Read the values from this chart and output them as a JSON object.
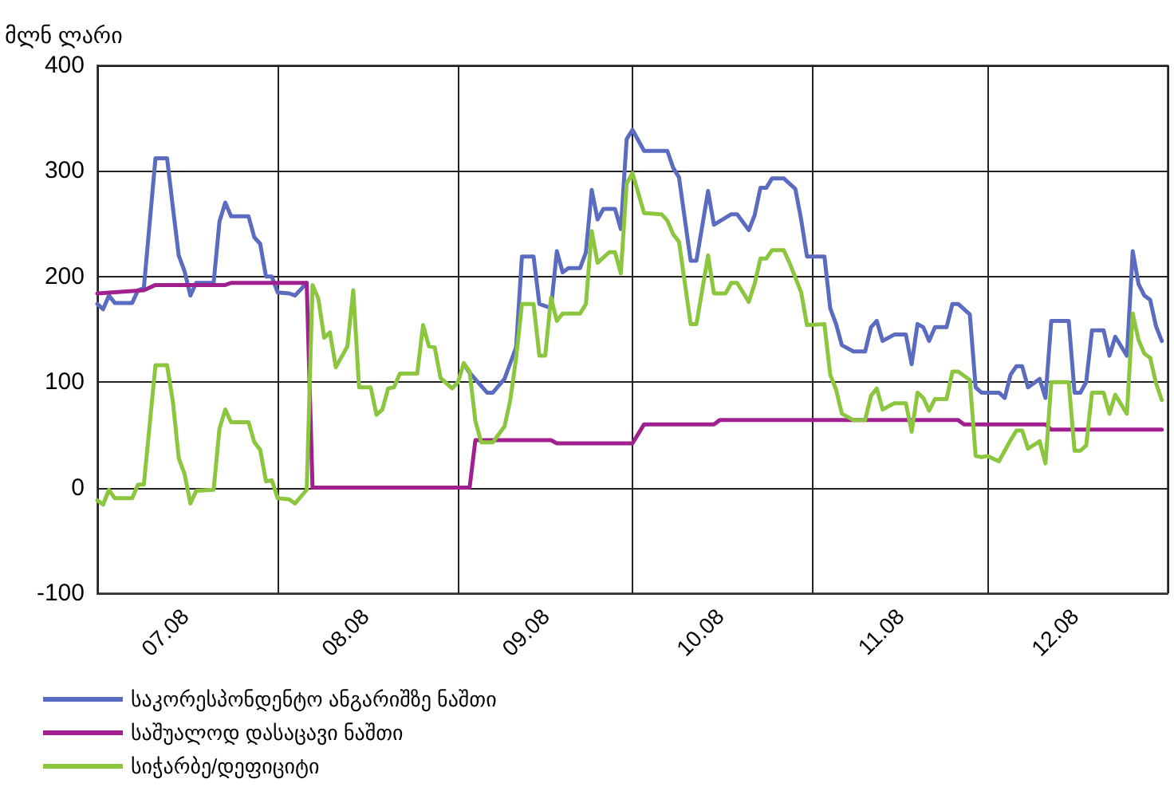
{
  "chart_data": {
    "type": "line",
    "ylabel": "მლნ ლარი",
    "xlim": [
      "2008-07-01",
      "2009-01-01"
    ],
    "xticks": [
      {
        "value": "2008-07-01",
        "label": null
      },
      {
        "value": "2008-07-16",
        "label": "07.08"
      },
      {
        "value": "2008-08-01",
        "label": null
      },
      {
        "value": "2008-08-16",
        "label": "08.08"
      },
      {
        "value": "2008-09-01",
        "label": null
      },
      {
        "value": "2008-09-16",
        "label": "09.08"
      },
      {
        "value": "2008-10-01",
        "label": null
      },
      {
        "value": "2008-10-16",
        "label": "10.08"
      },
      {
        "value": "2008-11-01",
        "label": null
      },
      {
        "value": "2008-11-16",
        "label": "11.08"
      },
      {
        "value": "2008-12-01",
        "label": null
      },
      {
        "value": "2008-12-16",
        "label": "12.08"
      },
      {
        "value": "2009-01-01",
        "label": null
      }
    ],
    "ylim": [
      -100,
      400
    ],
    "yticks": [
      -100,
      0,
      100,
      200,
      300,
      400
    ],
    "grid": true,
    "legend": "bottom",
    "marker": "none",
    "line_style": "solid",
    "series": [
      {
        "name": "საკორესპონდენტო ანგარიშზე ნაშთი",
        "color": "#5b6bbf",
        "x": [
          "2008-07-01",
          "2008-07-02",
          "2008-07-03",
          "2008-07-04",
          "2008-07-07",
          "2008-07-08",
          "2008-07-09",
          "2008-07-11",
          "2008-07-13",
          "2008-07-14",
          "2008-07-15",
          "2008-07-16",
          "2008-07-17",
          "2008-07-18",
          "2008-07-21",
          "2008-07-22",
          "2008-07-23",
          "2008-07-24",
          "2008-07-27",
          "2008-07-28",
          "2008-07-29",
          "2008-07-30",
          "2008-07-31",
          "2008-08-01",
          "2008-08-03",
          "2008-08-04",
          "2008-08-06",
          "2008-08-20",
          "2008-09-02",
          "2008-09-03",
          "2008-09-06",
          "2008-09-07",
          "2008-09-09",
          "2008-09-11",
          "2008-09-12",
          "2008-09-14",
          "2008-09-15",
          "2008-09-17",
          "2008-09-18",
          "2008-09-19",
          "2008-09-20",
          "2008-09-22",
          "2008-09-23",
          "2008-09-24",
          "2008-09-25",
          "2008-09-26",
          "2008-09-28",
          "2008-09-29",
          "2008-09-30",
          "2008-10-01",
          "2008-10-03",
          "2008-10-07",
          "2008-10-08",
          "2008-10-09",
          "2008-10-11",
          "2008-10-12",
          "2008-10-14",
          "2008-10-15",
          "2008-10-18",
          "2008-10-19",
          "2008-10-21",
          "2008-10-22",
          "2008-10-23",
          "2008-10-24",
          "2008-10-25",
          "2008-10-27",
          "2008-10-29",
          "2008-10-30",
          "2008-10-31",
          "2008-11-03",
          "2008-11-04",
          "2008-11-05",
          "2008-11-06",
          "2008-11-08",
          "2008-11-10",
          "2008-11-11",
          "2008-11-12",
          "2008-11-13",
          "2008-11-15",
          "2008-11-17",
          "2008-11-18",
          "2008-11-19",
          "2008-11-20",
          "2008-11-21",
          "2008-11-22",
          "2008-11-24",
          "2008-11-25",
          "2008-11-26",
          "2008-11-28",
          "2008-11-29",
          "2008-11-30",
          "2008-12-03",
          "2008-12-04",
          "2008-12-05",
          "2008-12-06",
          "2008-12-07",
          "2008-12-08",
          "2008-12-10",
          "2008-12-11",
          "2008-12-12",
          "2008-12-15",
          "2008-12-16",
          "2008-12-17",
          "2008-12-18",
          "2008-12-19",
          "2008-12-21",
          "2008-12-22",
          "2008-12-23",
          "2008-12-25",
          "2008-12-26",
          "2008-12-27",
          "2008-12-28",
          "2008-12-29",
          "2008-12-30",
          "2008-12-31"
        ],
        "values": [
          174,
          169,
          182,
          175,
          175,
          187,
          189,
          312,
          312,
          265,
          220,
          205,
          182,
          194,
          194,
          252,
          270,
          257,
          257,
          237,
          231,
          200,
          200,
          185,
          184,
          182,
          194,
          null,
          117,
          109,
          90,
          90,
          103,
          133,
          219,
          219,
          174,
          170,
          224,
          204,
          208,
          208,
          223,
          282,
          254,
          264,
          264,
          245,
          330,
          339,
          319,
          319,
          303,
          294,
          215,
          215,
          281,
          249,
          259,
          259,
          244,
          258,
          284,
          284,
          293,
          293,
          283,
          254,
          219,
          219,
          170,
          155,
          135,
          129,
          129,
          152,
          158,
          139,
          145,
          145,
          117,
          155,
          152,
          139,
          152,
          152,
          174,
          174,
          164,
          95,
          90,
          90,
          85,
          107,
          115,
          115,
          95,
          103,
          85,
          158,
          158,
          90,
          90,
          100,
          149,
          149,
          125,
          143,
          125,
          224,
          193,
          182,
          178,
          153,
          139
        ]
      },
      {
        "name": "საშუალოდ დასაცავი ნაშთი",
        "color": "#a0208f",
        "x": [
          "2008-07-01",
          "2008-07-09",
          "2008-07-11",
          "2008-07-23",
          "2008-07-24",
          "2008-08-06",
          "2008-08-07",
          "2008-09-03",
          "2008-09-04",
          "2008-09-17",
          "2008-09-18",
          "2008-10-01",
          "2008-10-03",
          "2008-10-15",
          "2008-10-16",
          "2008-11-26",
          "2008-11-27",
          "2008-12-11",
          "2008-12-12",
          "2008-12-31"
        ],
        "values": [
          184,
          187,
          192,
          192,
          194,
          194,
          0,
          0,
          45,
          45,
          42,
          42,
          60,
          60,
          64,
          64,
          60,
          60,
          55,
          55
        ]
      },
      {
        "name": "სიჭარბე/დეფიციტი",
        "color": "#8cc63f",
        "x": [
          "2008-07-01",
          "2008-07-02",
          "2008-07-03",
          "2008-07-04",
          "2008-07-07",
          "2008-07-08",
          "2008-07-09",
          "2008-07-11",
          "2008-07-13",
          "2008-07-14",
          "2008-07-15",
          "2008-07-16",
          "2008-07-17",
          "2008-07-18",
          "2008-07-21",
          "2008-07-22",
          "2008-07-23",
          "2008-07-24",
          "2008-07-27",
          "2008-07-28",
          "2008-07-29",
          "2008-07-30",
          "2008-07-31",
          "2008-08-01",
          "2008-08-03",
          "2008-08-04",
          "2008-08-06",
          "2008-08-07",
          "2008-08-08",
          "2008-08-09",
          "2008-08-10",
          "2008-08-11",
          "2008-08-13",
          "2008-08-14",
          "2008-08-15",
          "2008-08-17",
          "2008-08-18",
          "2008-08-19",
          "2008-08-20",
          "2008-08-21",
          "2008-08-22",
          "2008-08-25",
          "2008-08-26",
          "2008-08-27",
          "2008-08-28",
          "2008-08-29",
          "2008-08-31",
          "2008-09-01",
          "2008-09-02",
          "2008-09-03",
          "2008-09-04",
          "2008-09-05",
          "2008-09-07",
          "2008-09-09",
          "2008-09-10",
          "2008-09-11",
          "2008-09-12",
          "2008-09-14",
          "2008-09-15",
          "2008-09-16",
          "2008-09-17",
          "2008-09-18",
          "2008-09-19",
          "2008-09-22",
          "2008-09-23",
          "2008-09-24",
          "2008-09-25",
          "2008-09-27",
          "2008-09-28",
          "2008-09-29",
          "2008-09-30",
          "2008-10-01",
          "2008-10-03",
          "2008-10-06",
          "2008-10-07",
          "2008-10-08",
          "2008-10-09",
          "2008-10-11",
          "2008-10-12",
          "2008-10-14",
          "2008-10-15",
          "2008-10-17",
          "2008-10-18",
          "2008-10-19",
          "2008-10-21",
          "2008-10-22",
          "2008-10-23",
          "2008-10-24",
          "2008-10-25",
          "2008-10-27",
          "2008-10-28",
          "2008-10-30",
          "2008-10-31",
          "2008-11-03",
          "2008-11-04",
          "2008-11-05",
          "2008-11-06",
          "2008-11-08",
          "2008-11-10",
          "2008-11-11",
          "2008-11-12",
          "2008-11-13",
          "2008-11-15",
          "2008-11-17",
          "2008-11-18",
          "2008-11-19",
          "2008-11-20",
          "2008-11-21",
          "2008-11-22",
          "2008-11-24",
          "2008-11-25",
          "2008-11-26",
          "2008-11-28",
          "2008-11-29",
          "2008-11-30",
          "2008-12-01",
          "2008-12-03",
          "2008-12-05",
          "2008-12-06",
          "2008-12-07",
          "2008-12-08",
          "2008-12-10",
          "2008-12-11",
          "2008-12-12",
          "2008-12-15",
          "2008-12-16",
          "2008-12-17",
          "2008-12-18",
          "2008-12-19",
          "2008-12-21",
          "2008-12-22",
          "2008-12-23",
          "2008-12-25",
          "2008-12-26",
          "2008-12-27",
          "2008-12-28",
          "2008-12-29",
          "2008-12-30",
          "2008-12-31"
        ],
        "values": [
          -12,
          -16,
          -2,
          -10,
          -10,
          3,
          3,
          116,
          116,
          81,
          28,
          13,
          -15,
          -3,
          -2,
          56,
          74,
          62,
          62,
          43,
          36,
          6,
          7,
          -10,
          -11,
          -15,
          -2,
          192,
          179,
          142,
          147,
          114,
          134,
          187,
          95,
          95,
          69,
          74,
          94,
          95,
          108,
          108,
          154,
          134,
          133,
          104,
          94,
          100,
          118,
          110,
          63,
          43,
          43,
          58,
          83,
          123,
          174,
          174,
          125,
          125,
          180,
          158,
          165,
          165,
          174,
          243,
          213,
          223,
          223,
          203,
          288,
          298,
          260,
          259,
          253,
          240,
          233,
          155,
          155,
          220,
          184,
          184,
          194,
          194,
          176,
          193,
          217,
          217,
          225,
          225,
          213,
          185,
          154,
          155,
          107,
          93,
          70,
          64,
          64,
          87,
          94,
          74,
          80,
          80,
          53,
          90,
          85,
          73,
          84,
          84,
          110,
          110,
          102,
          30,
          29,
          30,
          25,
          45,
          54,
          54,
          37,
          44,
          23,
          100,
          100,
          35,
          35,
          40,
          90,
          90,
          70,
          88,
          70,
          165,
          140,
          127,
          123,
          99,
          83
        ]
      }
    ]
  }
}
